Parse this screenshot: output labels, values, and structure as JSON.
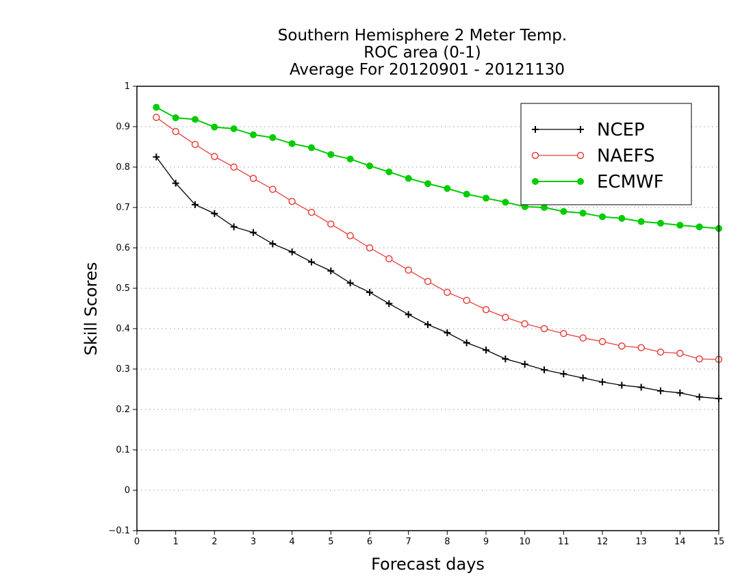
{
  "chart_data": {
    "type": "line",
    "title_lines": [
      "Southern Hemisphere 2 Meter Temp.",
      "ROC area (0-1)",
      "Average For 20120901 - 20121130"
    ],
    "xlabel": "Forecast days",
    "ylabel": "Skill Scores",
    "xlim": [
      0,
      15
    ],
    "ylim": [
      -0.1,
      1
    ],
    "x_ticks": [
      0,
      1,
      2,
      3,
      4,
      5,
      6,
      7,
      8,
      9,
      10,
      11,
      12,
      13,
      14,
      15
    ],
    "y_ticks": [
      -0.1,
      0,
      0.1,
      0.2,
      0.3,
      0.4,
      0.5,
      0.6,
      0.7,
      0.8,
      0.9,
      1
    ],
    "y_tick_labels": [
      "−0.1",
      "0",
      "0.1",
      "0.2",
      "0.3",
      "0.4",
      "0.5",
      "0.6",
      "0.7",
      "0.8",
      "0.9",
      "1"
    ],
    "grid": "horizontal dotted",
    "legend_placement": "top-right",
    "x": [
      0.5,
      1,
      1.5,
      2,
      2.5,
      3,
      3.5,
      4,
      4.5,
      5,
      5.5,
      6,
      6.5,
      7,
      7.5,
      8,
      8.5,
      9,
      9.5,
      10,
      10.5,
      11,
      11.5,
      12,
      12.5,
      13,
      13.5,
      14,
      14.5,
      15
    ],
    "series": [
      {
        "name": "NCEP",
        "color": "#000000",
        "marker": "plus",
        "values": [
          0.825,
          0.76,
          0.707,
          0.685,
          0.652,
          0.638,
          0.61,
          0.59,
          0.565,
          0.543,
          0.513,
          0.49,
          0.462,
          0.435,
          0.41,
          0.39,
          0.365,
          0.347,
          0.325,
          0.312,
          0.298,
          0.288,
          0.278,
          0.268,
          0.26,
          0.255,
          0.246,
          0.241,
          0.231,
          0.227
        ]
      },
      {
        "name": "NAEFS",
        "color": "#e8403c",
        "marker": "open-circle",
        "values": [
          0.923,
          0.888,
          0.856,
          0.826,
          0.8,
          0.772,
          0.745,
          0.715,
          0.688,
          0.659,
          0.63,
          0.6,
          0.573,
          0.545,
          0.517,
          0.49,
          0.47,
          0.447,
          0.428,
          0.412,
          0.4,
          0.388,
          0.377,
          0.368,
          0.357,
          0.353,
          0.342,
          0.339,
          0.325,
          0.324
        ]
      },
      {
        "name": "ECMWF",
        "color": "#00cc00",
        "marker": "filled-circle",
        "values": [
          0.948,
          0.922,
          0.918,
          0.899,
          0.895,
          0.88,
          0.873,
          0.858,
          0.848,
          0.831,
          0.82,
          0.803,
          0.788,
          0.772,
          0.759,
          0.747,
          0.733,
          0.723,
          0.713,
          0.702,
          0.7,
          0.69,
          0.686,
          0.677,
          0.673,
          0.665,
          0.661,
          0.656,
          0.652,
          0.648
        ]
      }
    ]
  }
}
